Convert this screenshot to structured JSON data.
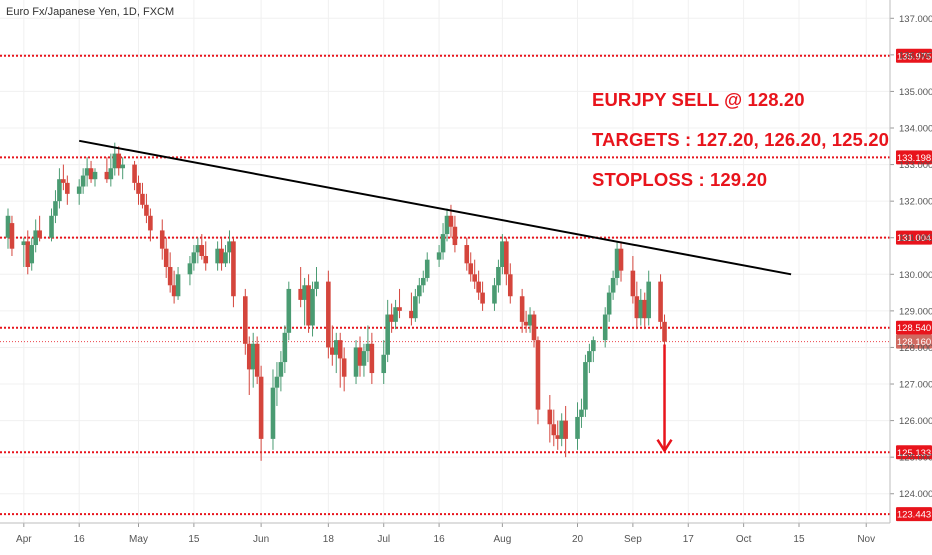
{
  "title": "Euro Fx/Japanese Yen, 1D, FXCM",
  "annotations": {
    "line1": "EURJPY SELL @ 128.20",
    "line2": "TARGETS : 127.20, 126.20, 125.20",
    "line3": "STOPLOSS : 129.20"
  },
  "colors": {
    "up": "#4a9b72",
    "down": "#d4453c",
    "level_line": "#e8141c",
    "trendline": "#000000",
    "price_tag": "#e8141c",
    "current_price_tag": "#d06a61",
    "axis_text": "#555555",
    "grid": "#f0f0f0"
  },
  "chart_data": {
    "type": "candlestick",
    "ylim": [
      123.2,
      137.5
    ],
    "y_ticks": [
      "124.000",
      "125.000",
      "126.000",
      "127.000",
      "128.000",
      "129.000",
      "130.000",
      "131.000",
      "132.000",
      "133.000",
      "134.000",
      "135.000",
      "136.000",
      "137.000"
    ],
    "x_start": "2018-03-29",
    "x_end": "2018-11-06",
    "x_ticks": [
      {
        "label": "Apr",
        "date": "2018-04-02"
      },
      {
        "label": "16",
        "date": "2018-04-16"
      },
      {
        "label": "May",
        "date": "2018-05-01"
      },
      {
        "label": "15",
        "date": "2018-05-15"
      },
      {
        "label": "Jun",
        "date": "2018-06-01"
      },
      {
        "label": "18",
        "date": "2018-06-18"
      },
      {
        "label": "Jul",
        "date": "2018-07-02"
      },
      {
        "label": "16",
        "date": "2018-07-16"
      },
      {
        "label": "Aug",
        "date": "2018-08-01"
      },
      {
        "label": "20",
        "date": "2018-08-20"
      },
      {
        "label": "Sep",
        "date": "2018-09-03"
      },
      {
        "label": "17",
        "date": "2018-09-17"
      },
      {
        "label": "Oct",
        "date": "2018-10-01"
      },
      {
        "label": "15",
        "date": "2018-10-15"
      },
      {
        "label": "Nov",
        "date": "2018-11-01"
      }
    ],
    "levels": [
      {
        "value": 135.975,
        "label": "135.975"
      },
      {
        "value": 133.198,
        "label": "133.198"
      },
      {
        "value": 131.004,
        "label": "131.004"
      },
      {
        "value": 128.54,
        "label": "128.540"
      },
      {
        "value": 125.133,
        "label": "125.133"
      },
      {
        "value": 123.443,
        "label": "123.443"
      }
    ],
    "current_price": {
      "value": 128.16,
      "label": "128.160"
    },
    "trendline": [
      {
        "date": "2018-04-16",
        "value": 133.65
      },
      {
        "date": "2018-10-13",
        "value": 130.0
      }
    ],
    "arrow": {
      "date": "2018-09-11",
      "from": 128.08,
      "to": 125.15
    },
    "candles": [
      {
        "date": "2018-03-29",
        "o": 131.0,
        "h": 131.8,
        "l": 130.7,
        "c": 131.6
      },
      {
        "date": "2018-03-30",
        "o": 131.4,
        "h": 131.6,
        "l": 130.5,
        "c": 130.7
      },
      {
        "date": "2018-04-02",
        "o": 130.8,
        "h": 131.0,
        "l": 130.2,
        "c": 130.9
      },
      {
        "date": "2018-04-03",
        "o": 130.9,
        "h": 131.2,
        "l": 130.0,
        "c": 130.2
      },
      {
        "date": "2018-04-04",
        "o": 130.3,
        "h": 131.0,
        "l": 130.1,
        "c": 130.8
      },
      {
        "date": "2018-04-05",
        "o": 130.8,
        "h": 131.5,
        "l": 130.6,
        "c": 131.2
      },
      {
        "date": "2018-04-06",
        "o": 131.2,
        "h": 131.6,
        "l": 130.9,
        "c": 131.0
      },
      {
        "date": "2018-04-09",
        "o": 131.0,
        "h": 131.8,
        "l": 130.9,
        "c": 131.6
      },
      {
        "date": "2018-04-10",
        "o": 131.6,
        "h": 132.3,
        "l": 131.4,
        "c": 132.0
      },
      {
        "date": "2018-04-11",
        "o": 132.0,
        "h": 132.9,
        "l": 131.8,
        "c": 132.6
      },
      {
        "date": "2018-04-12",
        "o": 132.6,
        "h": 133.0,
        "l": 132.3,
        "c": 132.5
      },
      {
        "date": "2018-04-13",
        "o": 132.5,
        "h": 132.7,
        "l": 131.9,
        "c": 132.2
      },
      {
        "date": "2018-04-16",
        "o": 132.2,
        "h": 132.6,
        "l": 131.9,
        "c": 132.4
      },
      {
        "date": "2018-04-17",
        "o": 132.4,
        "h": 132.9,
        "l": 132.2,
        "c": 132.7
      },
      {
        "date": "2018-04-18",
        "o": 132.7,
        "h": 133.2,
        "l": 132.4,
        "c": 132.9
      },
      {
        "date": "2018-04-19",
        "o": 132.9,
        "h": 133.1,
        "l": 132.5,
        "c": 132.6
      },
      {
        "date": "2018-04-20",
        "o": 132.6,
        "h": 132.9,
        "l": 132.4,
        "c": 132.8
      },
      {
        "date": "2018-04-23",
        "o": 132.8,
        "h": 133.2,
        "l": 132.5,
        "c": 132.6
      },
      {
        "date": "2018-04-24",
        "o": 132.6,
        "h": 133.3,
        "l": 132.4,
        "c": 132.9
      },
      {
        "date": "2018-04-25",
        "o": 132.9,
        "h": 133.6,
        "l": 132.7,
        "c": 133.3
      },
      {
        "date": "2018-04-26",
        "o": 133.3,
        "h": 133.5,
        "l": 132.7,
        "c": 132.9
      },
      {
        "date": "2018-04-27",
        "o": 132.9,
        "h": 133.2,
        "l": 132.6,
        "c": 133.0
      },
      {
        "date": "2018-04-30",
        "o": 133.0,
        "h": 133.1,
        "l": 132.3,
        "c": 132.5
      },
      {
        "date": "2018-05-01",
        "o": 132.5,
        "h": 132.7,
        "l": 131.9,
        "c": 132.2
      },
      {
        "date": "2018-05-02",
        "o": 132.2,
        "h": 132.5,
        "l": 131.8,
        "c": 131.9
      },
      {
        "date": "2018-05-03",
        "o": 131.9,
        "h": 132.2,
        "l": 131.4,
        "c": 131.6
      },
      {
        "date": "2018-05-04",
        "o": 131.6,
        "h": 131.8,
        "l": 130.9,
        "c": 131.2
      },
      {
        "date": "2018-05-07",
        "o": 131.2,
        "h": 131.5,
        "l": 130.4,
        "c": 130.7
      },
      {
        "date": "2018-05-08",
        "o": 130.7,
        "h": 131.0,
        "l": 129.9,
        "c": 130.2
      },
      {
        "date": "2018-05-09",
        "o": 130.2,
        "h": 130.6,
        "l": 129.5,
        "c": 129.7
      },
      {
        "date": "2018-05-10",
        "o": 129.7,
        "h": 130.1,
        "l": 129.2,
        "c": 129.4
      },
      {
        "date": "2018-05-11",
        "o": 129.4,
        "h": 130.2,
        "l": 129.3,
        "c": 130.0
      },
      {
        "date": "2018-05-14",
        "o": 130.0,
        "h": 130.5,
        "l": 129.7,
        "c": 130.3
      },
      {
        "date": "2018-05-15",
        "o": 130.3,
        "h": 130.8,
        "l": 130.1,
        "c": 130.6
      },
      {
        "date": "2018-05-16",
        "o": 130.6,
        "h": 131.0,
        "l": 130.3,
        "c": 130.8
      },
      {
        "date": "2018-05-17",
        "o": 130.8,
        "h": 131.1,
        "l": 130.4,
        "c": 130.5
      },
      {
        "date": "2018-05-18",
        "o": 130.5,
        "h": 130.9,
        "l": 130.1,
        "c": 130.3
      },
      {
        "date": "2018-05-21",
        "o": 130.3,
        "h": 130.9,
        "l": 130.1,
        "c": 130.7
      },
      {
        "date": "2018-05-22",
        "o": 130.7,
        "h": 131.0,
        "l": 130.1,
        "c": 130.3
      },
      {
        "date": "2018-05-23",
        "o": 130.3,
        "h": 130.8,
        "l": 130.2,
        "c": 130.6
      },
      {
        "date": "2018-05-24",
        "o": 130.6,
        "h": 131.2,
        "l": 130.3,
        "c": 130.9
      },
      {
        "date": "2018-05-25",
        "o": 130.9,
        "h": 131.0,
        "l": 129.1,
        "c": 129.4
      },
      {
        "date": "2018-05-28",
        "o": 129.4,
        "h": 129.6,
        "l": 127.8,
        "c": 128.1
      },
      {
        "date": "2018-05-29",
        "o": 128.1,
        "h": 128.3,
        "l": 126.7,
        "c": 127.4
      },
      {
        "date": "2018-05-30",
        "o": 127.4,
        "h": 128.4,
        "l": 126.9,
        "c": 128.1
      },
      {
        "date": "2018-05-31",
        "o": 128.1,
        "h": 128.3,
        "l": 127.0,
        "c": 127.2
      },
      {
        "date": "2018-06-01",
        "o": 127.2,
        "h": 127.5,
        "l": 124.9,
        "c": 125.5
      },
      {
        "date": "2018-06-04",
        "o": 125.5,
        "h": 127.4,
        "l": 125.2,
        "c": 126.9
      },
      {
        "date": "2018-06-05",
        "o": 126.9,
        "h": 127.6,
        "l": 126.4,
        "c": 127.2
      },
      {
        "date": "2018-06-06",
        "o": 127.2,
        "h": 127.9,
        "l": 126.8,
        "c": 127.6
      },
      {
        "date": "2018-06-07",
        "o": 127.6,
        "h": 128.6,
        "l": 127.3,
        "c": 128.4
      },
      {
        "date": "2018-06-08",
        "o": 128.4,
        "h": 129.8,
        "l": 128.2,
        "c": 129.6
      },
      {
        "date": "2018-06-11",
        "o": 129.6,
        "h": 130.2,
        "l": 129.1,
        "c": 129.3
      },
      {
        "date": "2018-06-12",
        "o": 129.3,
        "h": 129.9,
        "l": 128.6,
        "c": 129.7
      },
      {
        "date": "2018-06-13",
        "o": 129.7,
        "h": 130.0,
        "l": 128.4,
        "c": 128.6
      },
      {
        "date": "2018-06-14",
        "o": 128.6,
        "h": 129.8,
        "l": 128.3,
        "c": 129.6
      },
      {
        "date": "2018-06-15",
        "o": 129.6,
        "h": 130.2,
        "l": 129.4,
        "c": 129.8
      },
      {
        "date": "2018-06-18",
        "o": 129.8,
        "h": 130.1,
        "l": 127.7,
        "c": 128.0
      },
      {
        "date": "2018-06-19",
        "o": 128.0,
        "h": 128.6,
        "l": 127.5,
        "c": 127.8
      },
      {
        "date": "2018-06-20",
        "o": 127.8,
        "h": 128.4,
        "l": 127.3,
        "c": 128.2
      },
      {
        "date": "2018-06-21",
        "o": 128.2,
        "h": 128.4,
        "l": 126.9,
        "c": 127.7
      },
      {
        "date": "2018-06-22",
        "o": 127.7,
        "h": 128.0,
        "l": 126.8,
        "c": 127.2
      },
      {
        "date": "2018-06-25",
        "o": 127.2,
        "h": 128.2,
        "l": 127.0,
        "c": 128.0
      },
      {
        "date": "2018-06-26",
        "o": 128.0,
        "h": 128.3,
        "l": 127.2,
        "c": 127.5
      },
      {
        "date": "2018-06-27",
        "o": 127.5,
        "h": 128.1,
        "l": 127.2,
        "c": 127.9
      },
      {
        "date": "2018-06-28",
        "o": 127.9,
        "h": 128.6,
        "l": 127.6,
        "c": 128.1
      },
      {
        "date": "2018-06-29",
        "o": 128.1,
        "h": 128.4,
        "l": 127.0,
        "c": 127.3
      },
      {
        "date": "2018-07-02",
        "o": 127.3,
        "h": 128.2,
        "l": 127.0,
        "c": 127.8
      },
      {
        "date": "2018-07-03",
        "o": 127.8,
        "h": 129.3,
        "l": 127.6,
        "c": 128.9
      },
      {
        "date": "2018-07-04",
        "o": 128.9,
        "h": 129.2,
        "l": 128.4,
        "c": 128.7
      },
      {
        "date": "2018-07-05",
        "o": 128.7,
        "h": 129.3,
        "l": 128.5,
        "c": 129.1
      },
      {
        "date": "2018-07-06",
        "o": 129.1,
        "h": 129.6,
        "l": 128.8,
        "c": 129.0
      },
      {
        "date": "2018-07-09",
        "o": 129.0,
        "h": 129.5,
        "l": 128.6,
        "c": 128.8
      },
      {
        "date": "2018-07-10",
        "o": 128.8,
        "h": 129.6,
        "l": 128.7,
        "c": 129.4
      },
      {
        "date": "2018-07-11",
        "o": 129.4,
        "h": 129.9,
        "l": 129.2,
        "c": 129.7
      },
      {
        "date": "2018-07-12",
        "o": 129.7,
        "h": 130.1,
        "l": 129.5,
        "c": 129.9
      },
      {
        "date": "2018-07-13",
        "o": 129.9,
        "h": 130.6,
        "l": 129.8,
        "c": 130.4
      },
      {
        "date": "2018-07-16",
        "o": 130.4,
        "h": 130.8,
        "l": 130.2,
        "c": 130.6
      },
      {
        "date": "2018-07-17",
        "o": 130.6,
        "h": 131.4,
        "l": 130.4,
        "c": 131.1
      },
      {
        "date": "2018-07-18",
        "o": 131.1,
        "h": 131.8,
        "l": 130.9,
        "c": 131.6
      },
      {
        "date": "2018-07-19",
        "o": 131.6,
        "h": 131.9,
        "l": 131.0,
        "c": 131.3
      },
      {
        "date": "2018-07-20",
        "o": 131.3,
        "h": 131.6,
        "l": 130.6,
        "c": 130.8
      },
      {
        "date": "2018-07-23",
        "o": 130.8,
        "h": 131.0,
        "l": 130.1,
        "c": 130.3
      },
      {
        "date": "2018-07-24",
        "o": 130.3,
        "h": 130.6,
        "l": 129.8,
        "c": 130.0
      },
      {
        "date": "2018-07-25",
        "o": 130.0,
        "h": 130.4,
        "l": 129.6,
        "c": 129.8
      },
      {
        "date": "2018-07-26",
        "o": 129.8,
        "h": 130.1,
        "l": 129.3,
        "c": 129.5
      },
      {
        "date": "2018-07-27",
        "o": 129.5,
        "h": 129.8,
        "l": 129.0,
        "c": 129.2
      },
      {
        "date": "2018-07-30",
        "o": 129.2,
        "h": 129.9,
        "l": 129.0,
        "c": 129.7
      },
      {
        "date": "2018-07-31",
        "o": 129.7,
        "h": 130.4,
        "l": 129.5,
        "c": 130.2
      },
      {
        "date": "2018-08-01",
        "o": 130.2,
        "h": 131.1,
        "l": 130.0,
        "c": 130.9
      },
      {
        "date": "2018-08-02",
        "o": 130.9,
        "h": 131.0,
        "l": 129.7,
        "c": 130.0
      },
      {
        "date": "2018-08-03",
        "o": 130.0,
        "h": 130.3,
        "l": 129.2,
        "c": 129.4
      },
      {
        "date": "2018-08-06",
        "o": 129.4,
        "h": 129.6,
        "l": 128.4,
        "c": 128.7
      },
      {
        "date": "2018-08-07",
        "o": 128.7,
        "h": 129.0,
        "l": 128.4,
        "c": 128.6
      },
      {
        "date": "2018-08-08",
        "o": 128.6,
        "h": 129.1,
        "l": 128.4,
        "c": 128.9
      },
      {
        "date": "2018-08-09",
        "o": 128.9,
        "h": 129.0,
        "l": 128.0,
        "c": 128.2
      },
      {
        "date": "2018-08-10",
        "o": 128.2,
        "h": 128.3,
        "l": 125.9,
        "c": 126.3
      },
      {
        "date": "2018-08-13",
        "o": 126.3,
        "h": 126.7,
        "l": 125.4,
        "c": 125.9
      },
      {
        "date": "2018-08-14",
        "o": 125.9,
        "h": 126.3,
        "l": 125.3,
        "c": 125.6
      },
      {
        "date": "2018-08-15",
        "o": 125.6,
        "h": 126.0,
        "l": 125.2,
        "c": 125.5
      },
      {
        "date": "2018-08-16",
        "o": 125.5,
        "h": 126.2,
        "l": 125.3,
        "c": 126.0
      },
      {
        "date": "2018-08-17",
        "o": 126.0,
        "h": 126.4,
        "l": 125.0,
        "c": 125.5
      },
      {
        "date": "2018-08-20",
        "o": 125.5,
        "h": 126.5,
        "l": 125.2,
        "c": 126.1
      },
      {
        "date": "2018-08-21",
        "o": 126.1,
        "h": 126.6,
        "l": 125.8,
        "c": 126.3
      },
      {
        "date": "2018-08-22",
        "o": 126.3,
        "h": 127.8,
        "l": 126.1,
        "c": 127.6
      },
      {
        "date": "2018-08-23",
        "o": 127.6,
        "h": 128.1,
        "l": 127.3,
        "c": 127.9
      },
      {
        "date": "2018-08-24",
        "o": 127.9,
        "h": 128.3,
        "l": 127.6,
        "c": 128.2
      },
      {
        "date": "2018-08-27",
        "o": 128.2,
        "h": 129.1,
        "l": 128.0,
        "c": 128.9
      },
      {
        "date": "2018-08-28",
        "o": 128.9,
        "h": 129.7,
        "l": 128.7,
        "c": 129.5
      },
      {
        "date": "2018-08-29",
        "o": 129.5,
        "h": 130.1,
        "l": 129.3,
        "c": 129.9
      },
      {
        "date": "2018-08-30",
        "o": 129.9,
        "h": 130.9,
        "l": 129.7,
        "c": 130.7
      },
      {
        "date": "2018-08-31",
        "o": 130.7,
        "h": 130.9,
        "l": 129.8,
        "c": 130.1
      },
      {
        "date": "2018-09-03",
        "o": 130.1,
        "h": 130.5,
        "l": 129.2,
        "c": 129.4
      },
      {
        "date": "2018-09-04",
        "o": 129.4,
        "h": 129.8,
        "l": 128.5,
        "c": 128.8
      },
      {
        "date": "2018-09-05",
        "o": 128.8,
        "h": 129.6,
        "l": 128.6,
        "c": 129.3
      },
      {
        "date": "2018-09-06",
        "o": 129.3,
        "h": 129.5,
        "l": 128.5,
        "c": 128.8
      },
      {
        "date": "2018-09-07",
        "o": 128.8,
        "h": 130.1,
        "l": 128.6,
        "c": 129.8
      },
      {
        "date": "2018-09-10",
        "o": 129.8,
        "h": 130.0,
        "l": 128.5,
        "c": 128.7
      },
      {
        "date": "2018-09-11",
        "o": 128.7,
        "h": 128.9,
        "l": 128.0,
        "c": 128.16
      }
    ]
  }
}
